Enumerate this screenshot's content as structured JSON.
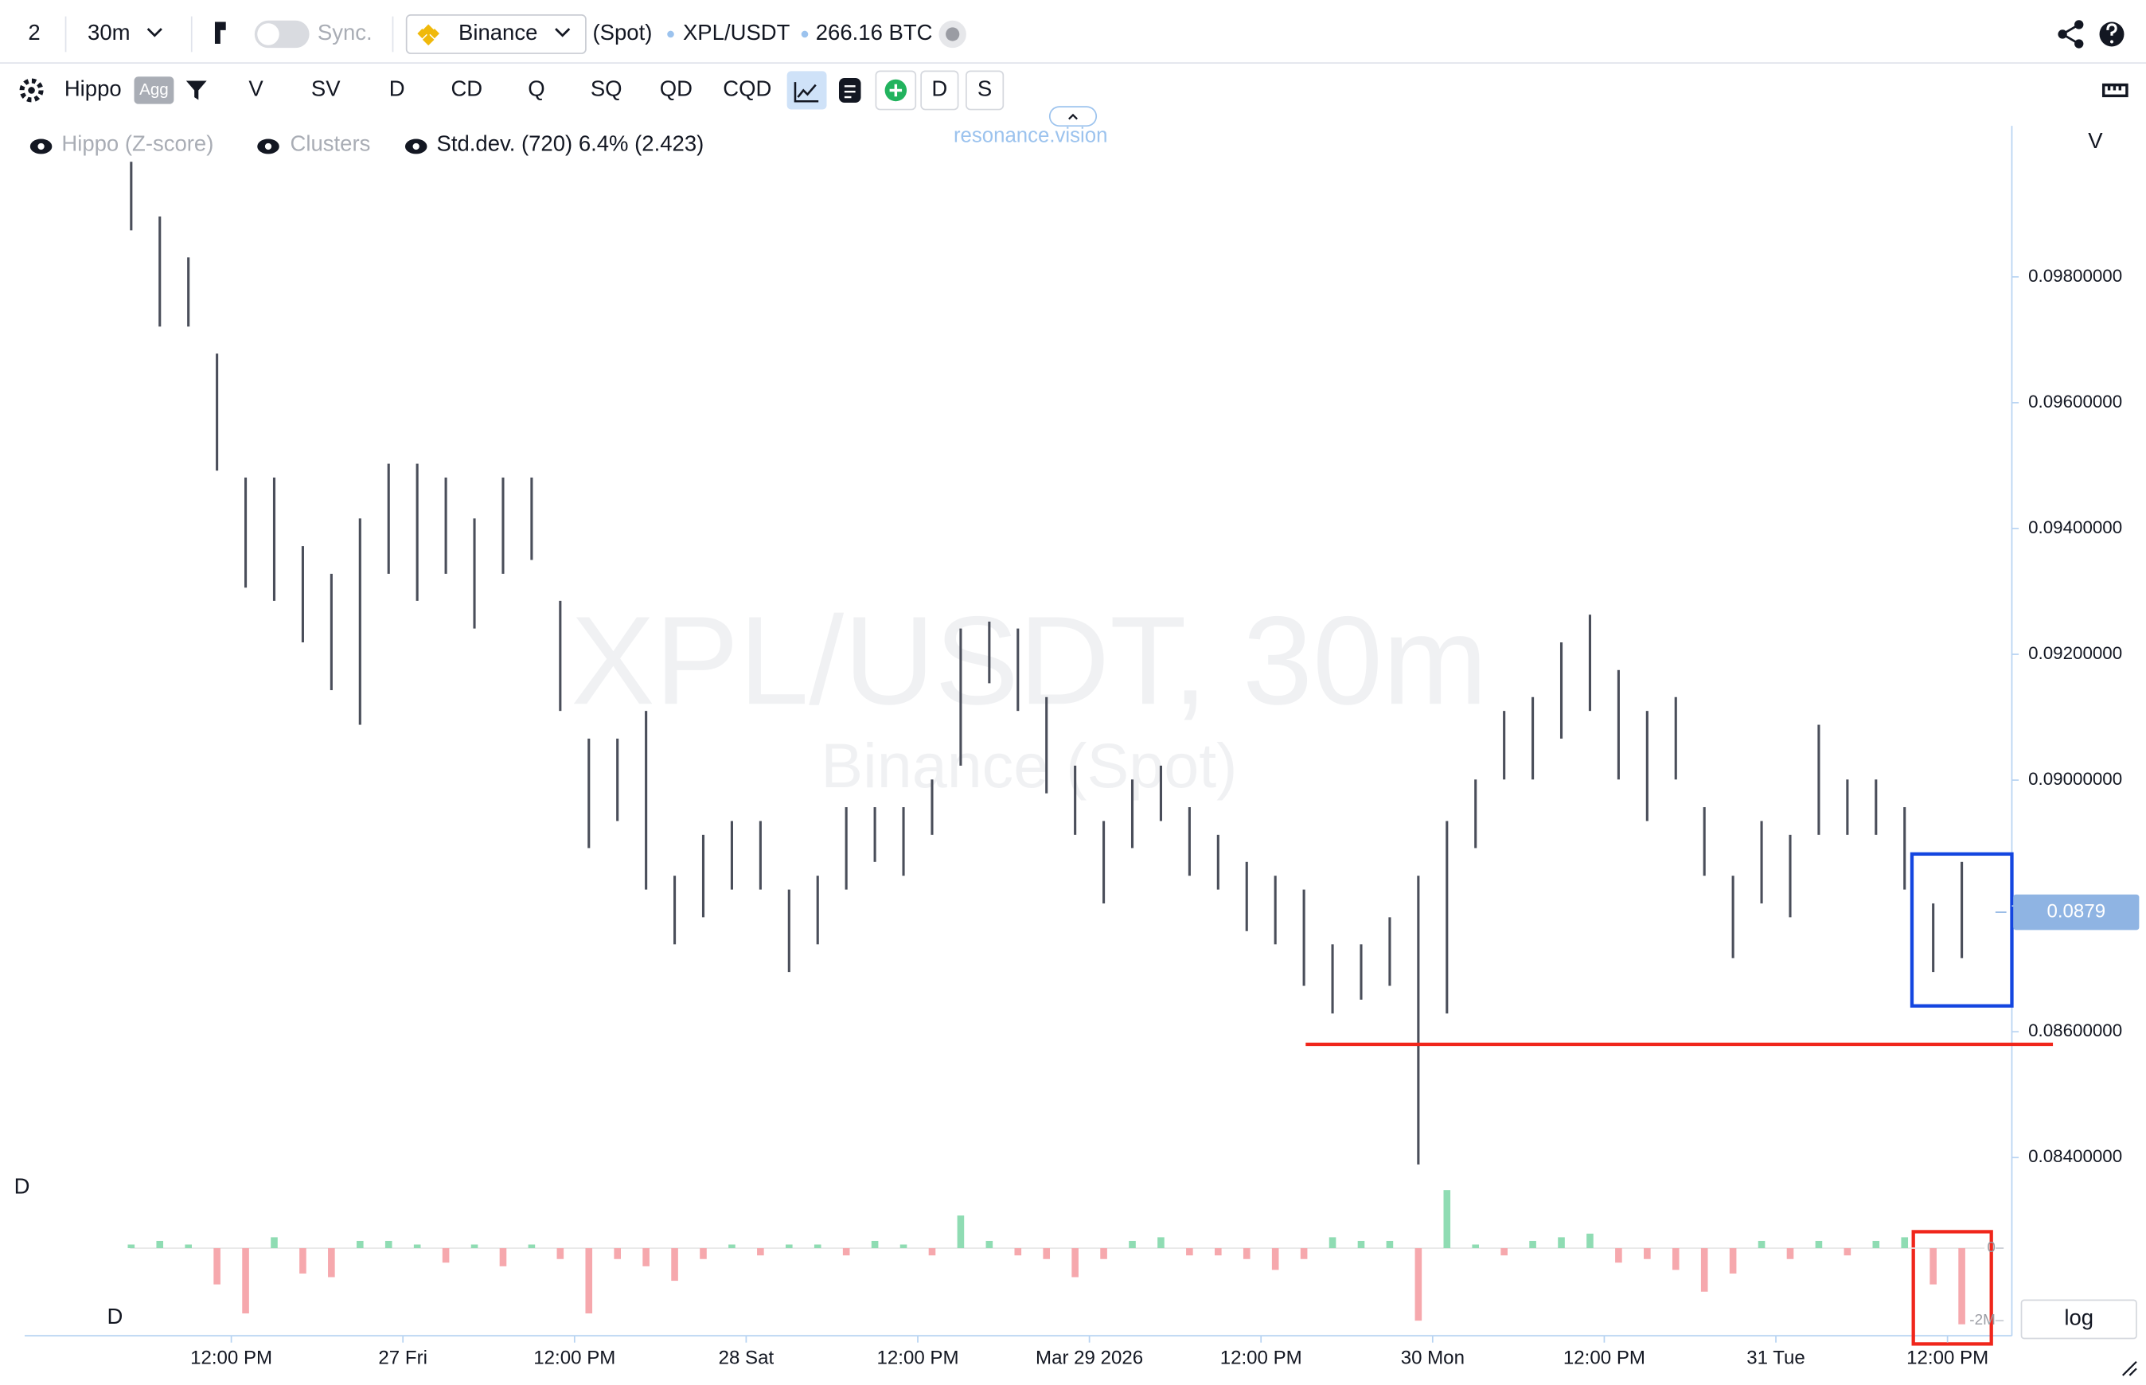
{
  "toolbar": {
    "layout_count": "2",
    "timeframe": "30m",
    "sync": "Sync.",
    "exchange": "Binance",
    "market": "(Spot)",
    "pair": "XPL/USDT",
    "volume": "266.16 BTC"
  },
  "indicator_bar": {
    "name": "Hippo",
    "badge": "Agg",
    "buttons": [
      "V",
      "SV",
      "D",
      "CD",
      "Q",
      "SQ",
      "QD",
      "CQD",
      "D",
      "S"
    ]
  },
  "legend": {
    "items": [
      "Hippo (Z-score)",
      "Clusters",
      "Std.dev. (720) 6.4% (2.423)"
    ],
    "brand": "resonance.vision"
  },
  "chart_data": {
    "type": "candlestick",
    "title": "XPL/USDT, 30m",
    "subtitle": "Binance (Spot)",
    "axis_label": "V",
    "x": [
      -7,
      -5,
      -3,
      -1,
      1,
      3,
      5,
      7,
      9,
      11,
      13,
      15,
      17,
      19,
      21,
      23,
      25,
      27,
      29,
      31,
      33,
      35,
      37,
      39,
      41,
      43,
      45,
      47,
      49,
      51,
      53,
      55,
      57,
      59,
      61,
      63,
      65,
      67,
      69,
      71,
      73,
      75,
      77,
      79,
      81,
      83,
      85,
      87,
      89,
      91,
      93,
      95,
      97,
      99,
      101,
      103,
      105,
      107,
      109,
      111,
      113,
      115,
      117,
      119,
      121
    ],
    "highs": [
      0.09983,
      0.09896,
      0.09831,
      0.09678,
      0.09481,
      0.09481,
      0.09372,
      0.09328,
      0.09416,
      0.09503,
      0.09503,
      0.09481,
      0.09416,
      0.09481,
      0.09481,
      0.09285,
      0.09066,
      0.09066,
      0.0911,
      0.08848,
      0.08913,
      0.08935,
      0.08935,
      0.08826,
      0.08848,
      0.08957,
      0.08957,
      0.08957,
      0.09001,
      0.09241,
      0.09252,
      0.09241,
      0.09132,
      0.09023,
      0.08935,
      0.09001,
      0.09023,
      0.08957,
      0.08913,
      0.0887,
      0.08848,
      0.08826,
      0.08739,
      0.08739,
      0.08782,
      0.08848,
      0.08935,
      0.09001,
      0.0911,
      0.09132,
      0.09219,
      0.09263,
      0.09175,
      0.0911,
      0.09132,
      0.08957,
      0.08848,
      0.08935,
      0.08913,
      0.09088,
      0.09001,
      0.09001,
      0.08957,
      0.08804,
      0.0887
    ],
    "lows": [
      0.09874,
      0.09721,
      0.09721,
      0.09492,
      0.09306,
      0.09285,
      0.09219,
      0.09143,
      0.09088,
      0.09328,
      0.09285,
      0.09328,
      0.09241,
      0.09328,
      0.0935,
      0.0911,
      0.08892,
      0.08935,
      0.08826,
      0.08739,
      0.08782,
      0.08826,
      0.08826,
      0.08695,
      0.08739,
      0.08826,
      0.0887,
      0.08848,
      0.08913,
      0.09023,
      0.09154,
      0.0911,
      0.08979,
      0.08913,
      0.08804,
      0.08892,
      0.08935,
      0.08848,
      0.08826,
      0.0876,
      0.08739,
      0.08673,
      0.08629,
      0.08651,
      0.08673,
      0.08389,
      0.08629,
      0.08892,
      0.09001,
      0.09001,
      0.09066,
      0.0911,
      0.09001,
      0.08935,
      0.09001,
      0.08848,
      0.08717,
      0.08804,
      0.08782,
      0.08913,
      0.08913,
      0.08913,
      0.08826,
      0.08695,
      0.08717
    ],
    "color": "#4a4e5a",
    "xlim": [
      -14.45,
      124.5
    ],
    "xticks": [
      {
        "value": 0,
        "label": "12:00 PM"
      },
      {
        "value": 12,
        "label": "27 Fri"
      },
      {
        "value": 24,
        "label": "12:00 PM"
      },
      {
        "value": 36,
        "label": "28 Sat"
      },
      {
        "value": 48,
        "label": "12:00 PM"
      },
      {
        "value": 60,
        "label": "Mar 29 2026"
      },
      {
        "value": 72,
        "label": "12:00 PM"
      },
      {
        "value": 84,
        "label": "30 Mon"
      },
      {
        "value": 96,
        "label": "12:00 PM"
      },
      {
        "value": 108,
        "label": "31 Tue"
      },
      {
        "value": 120,
        "label": "12:00 PM"
      }
    ],
    "ylim": [
      0.0838,
      0.1004
    ],
    "yticks": [
      {
        "value": 0.084,
        "label": "0.08400000"
      },
      {
        "value": 0.086,
        "label": "0.08600000"
      },
      {
        "value": 0.088,
        "label": "0.08800000"
      },
      {
        "value": 0.09,
        "label": "0.09000000"
      },
      {
        "value": 0.092,
        "label": "0.09200000"
      },
      {
        "value": 0.094,
        "label": "0.09400000"
      },
      {
        "value": 0.096,
        "label": "0.09600000"
      },
      {
        "value": 0.098,
        "label": "0.09800000"
      }
    ],
    "grid": false,
    "last_price": 0.0879,
    "last_price_color": "#8fb4e3",
    "support_level": 0.0858,
    "support_color": "#f0261b",
    "delta": {
      "pane_label": "D",
      "series_label": "D",
      "values": [
        100000,
        200000,
        100000,
        -1000000,
        -1800000,
        300000,
        -700000,
        -800000,
        200000,
        200000,
        100000,
        -400000,
        100000,
        -500000,
        100000,
        -300000,
        -1800000,
        -300000,
        -500000,
        -900000,
        -300000,
        100000,
        -200000,
        100000,
        100000,
        -200000,
        200000,
        100000,
        -200000,
        900000,
        200000,
        -200000,
        -300000,
        -800000,
        -300000,
        200000,
        300000,
        -200000,
        -200000,
        -300000,
        -600000,
        -300000,
        300000,
        200000,
        200000,
        -2000000,
        1600000,
        100000,
        -200000,
        200000,
        300000,
        400000,
        -400000,
        -300000,
        -600000,
        -1200000,
        -700000,
        200000,
        -300000,
        200000,
        -200000,
        200000,
        300000,
        -1000000,
        -2100000
      ],
      "up_color": "#8fdcb3",
      "down_color": "#f6a8ad",
      "ylim": [
        -2400000,
        1600000
      ],
      "yticks": [
        {
          "value": 0,
          "label": "0"
        },
        {
          "value": -2000000,
          "label": "-2M"
        }
      ]
    },
    "scale_button": "log"
  }
}
